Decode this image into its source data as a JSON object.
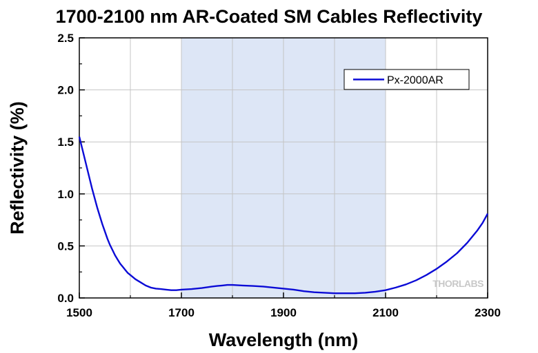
{
  "chart_data": {
    "type": "line",
    "title": "1700-2100 nm AR-Coated SM Cables Reflectivity",
    "xlabel": "Wavelength (nm)",
    "ylabel": "Reflectivity (%)",
    "xlim": [
      1500,
      2300
    ],
    "ylim": [
      0,
      2.5
    ],
    "xticks": [
      "1500",
      "1700",
      "1900",
      "2100",
      "2300"
    ],
    "yticks": [
      "0.0",
      "0.5",
      "1.0",
      "1.5",
      "2.0",
      "2.5"
    ],
    "x_minor_step": 100,
    "y_minor_step": 0.25,
    "grid": true,
    "shaded_band": [
      1700,
      2100
    ],
    "shaded_color": "#dde6f6",
    "legend_position": "top-right",
    "watermark": "THORLABS",
    "series": [
      {
        "name": "Px-2000AR",
        "color": "#0b0bd6",
        "x": [
          1500,
          1505,
          1510,
          1515,
          1520,
          1525,
          1530,
          1535,
          1540,
          1545,
          1550,
          1555,
          1560,
          1565,
          1570,
          1575,
          1580,
          1585,
          1590,
          1595,
          1600,
          1610,
          1620,
          1630,
          1640,
          1650,
          1660,
          1670,
          1680,
          1690,
          1700,
          1720,
          1740,
          1760,
          1770,
          1780,
          1790,
          1800,
          1820,
          1840,
          1860,
          1880,
          1900,
          1920,
          1940,
          1960,
          1980,
          2000,
          2020,
          2040,
          2060,
          2080,
          2100,
          2120,
          2140,
          2160,
          2180,
          2200,
          2220,
          2240,
          2260,
          2280,
          2290,
          2300
        ],
        "y": [
          1.55,
          1.45,
          1.35,
          1.25,
          1.15,
          1.05,
          0.96,
          0.87,
          0.79,
          0.71,
          0.64,
          0.57,
          0.51,
          0.46,
          0.41,
          0.37,
          0.33,
          0.3,
          0.27,
          0.24,
          0.22,
          0.18,
          0.15,
          0.12,
          0.1,
          0.09,
          0.085,
          0.08,
          0.075,
          0.075,
          0.08,
          0.085,
          0.095,
          0.11,
          0.115,
          0.12,
          0.125,
          0.125,
          0.12,
          0.115,
          0.11,
          0.1,
          0.09,
          0.08,
          0.065,
          0.055,
          0.05,
          0.045,
          0.045,
          0.045,
          0.05,
          0.06,
          0.075,
          0.1,
          0.13,
          0.17,
          0.22,
          0.28,
          0.35,
          0.43,
          0.53,
          0.65,
          0.72,
          0.81
        ]
      }
    ]
  }
}
